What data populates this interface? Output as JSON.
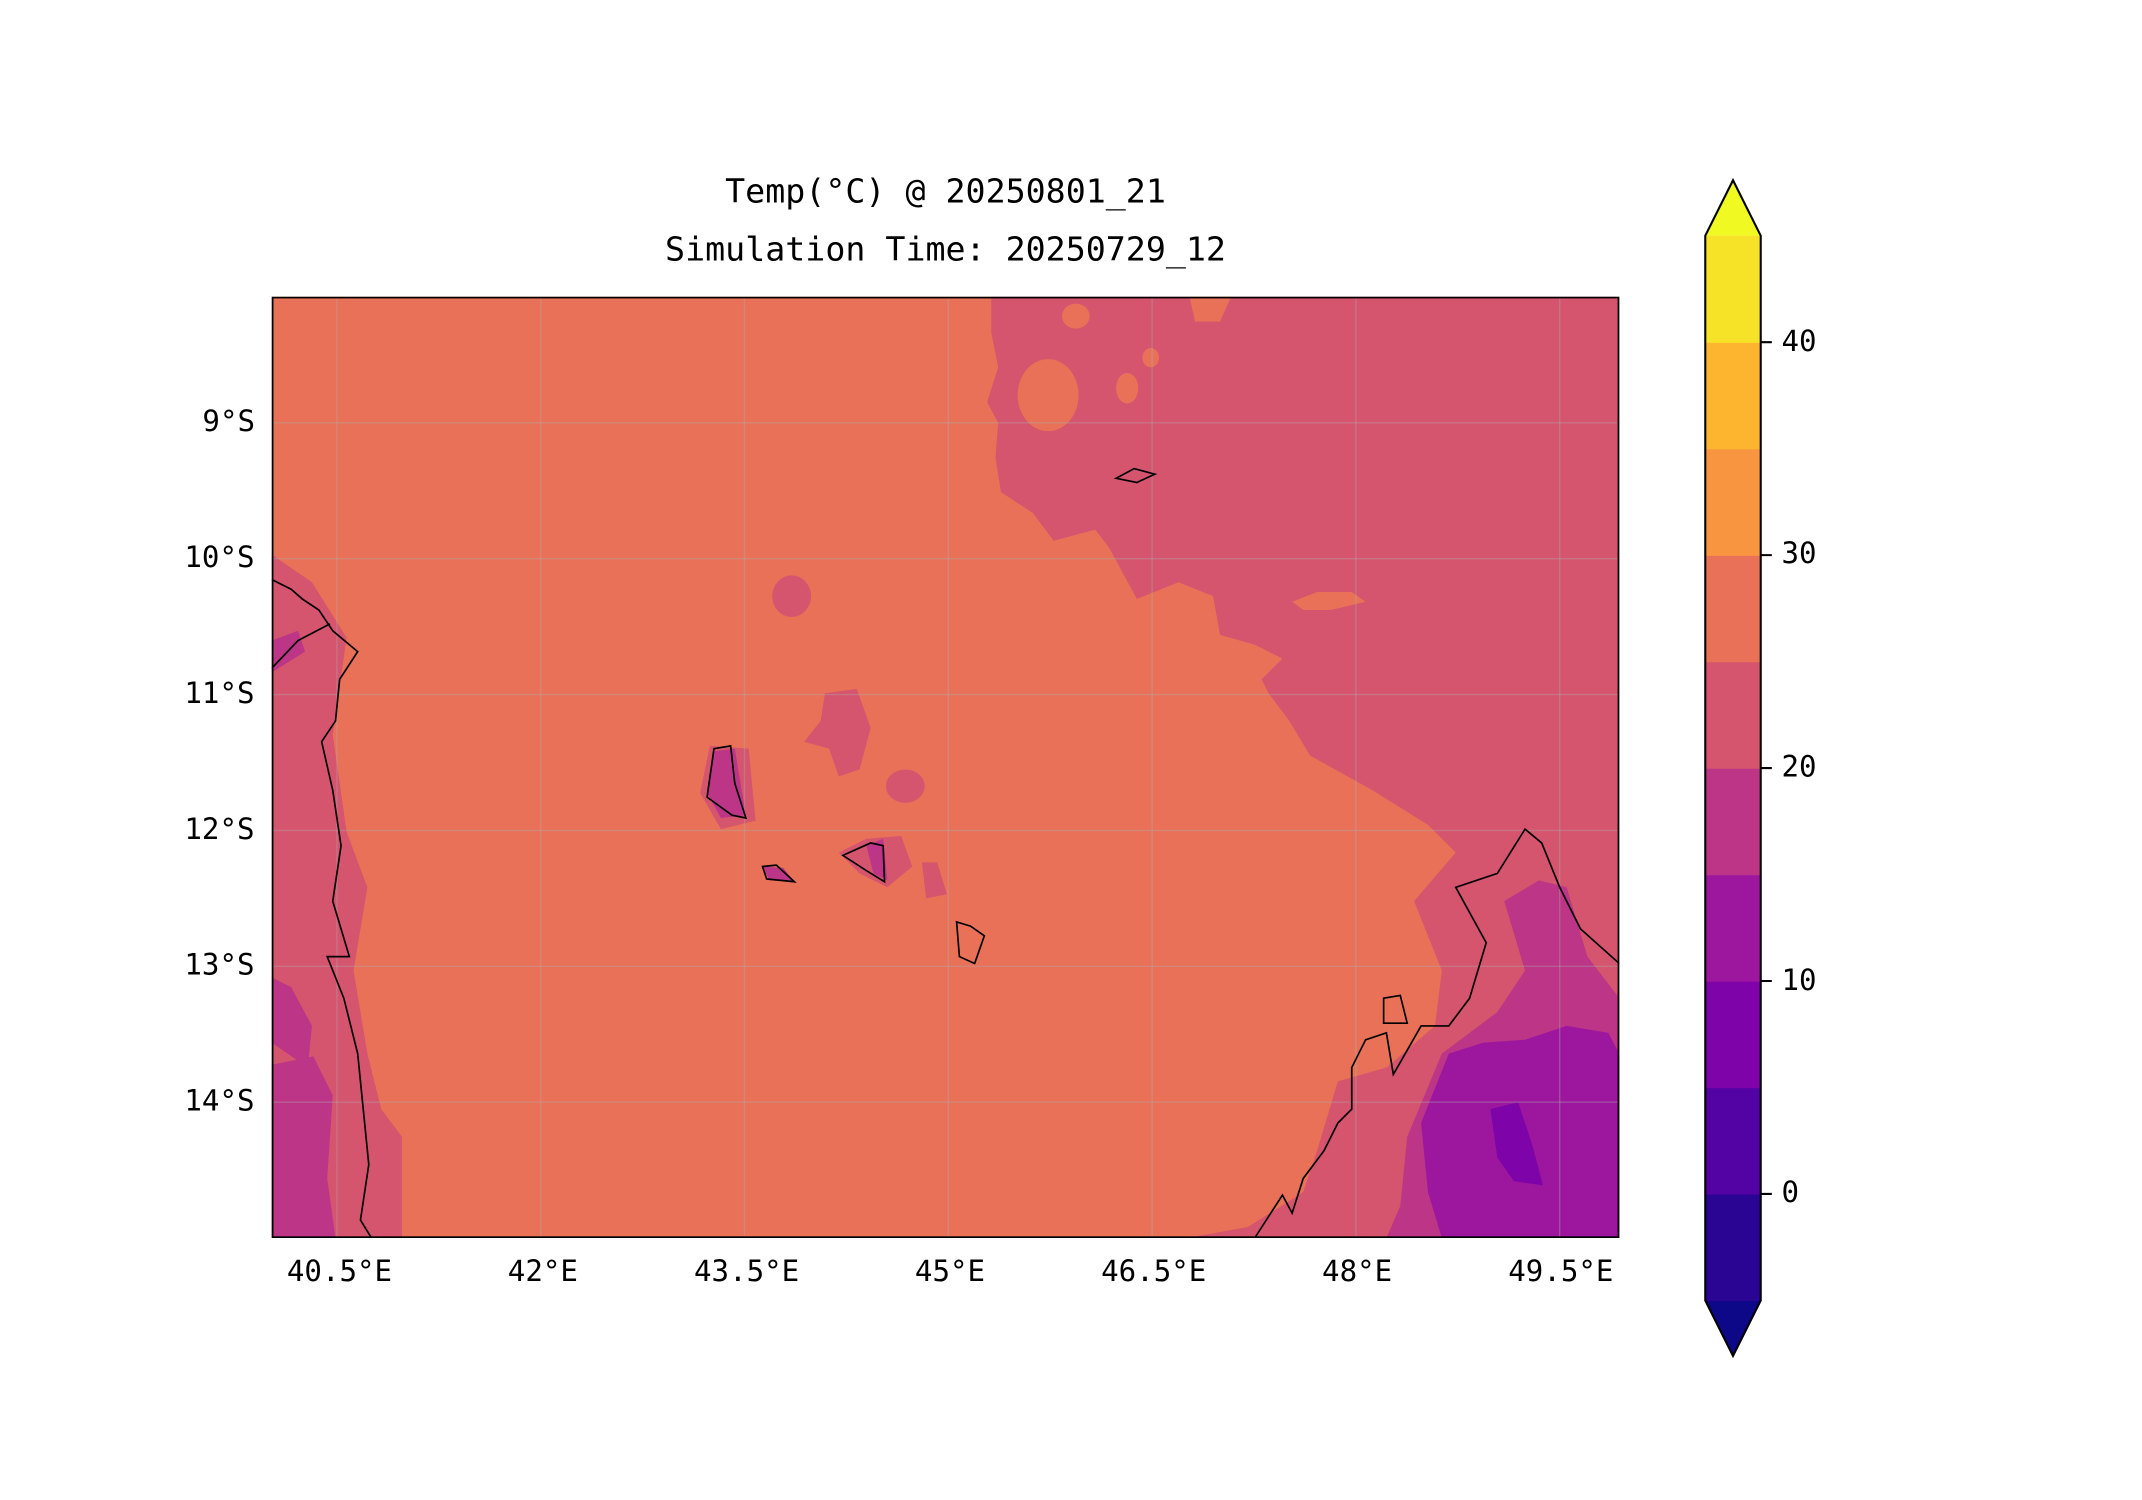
{
  "chart_data": {
    "type": "heatmap",
    "title": [
      "Temp(°C) @ 20250801_21",
      "Simulation Time: 20250729_12"
    ],
    "variable": "Temp(°C)",
    "lon_range": [
      40.0,
      49.93
    ],
    "lat_range": [
      -15.0,
      -8.07
    ],
    "x_ticks": [
      40.5,
      42,
      43.5,
      45,
      46.5,
      48,
      49.5
    ],
    "x_tick_labels": [
      "40.5°E",
      "42°E",
      "43.5°E",
      "45°E",
      "46.5°E",
      "48°E",
      "49.5°E"
    ],
    "y_ticks": [
      -9,
      -10,
      -11,
      -12,
      -13,
      -14
    ],
    "y_tick_labels": [
      "9°S",
      "10°S",
      "11°S",
      "12°S",
      "13°S",
      "14°S"
    ],
    "grid": true,
    "colorbar": {
      "levels": [
        -5,
        0,
        5,
        10,
        15,
        20,
        25,
        30,
        35,
        40,
        45
      ],
      "colors": [
        "#2a0593",
        "#5302a3",
        "#7e03a8",
        "#9c179e",
        "#bc3587",
        "#d5546e",
        "#e97158",
        "#f89540",
        "#fdb42f",
        "#f6e226"
      ],
      "under_color": "#0d0887",
      "over_color": "#f0f921",
      "extend": "both",
      "ticks": [
        0,
        10,
        20,
        30,
        40
      ],
      "tick_labels": [
        "0",
        "10",
        "20",
        "30",
        "40"
      ]
    },
    "field_summary": {
      "dominant_band": "25-30",
      "ne_ocean_band": "20-25",
      "madagascar_min_band": "5-10",
      "background_color": "#e97158"
    }
  }
}
